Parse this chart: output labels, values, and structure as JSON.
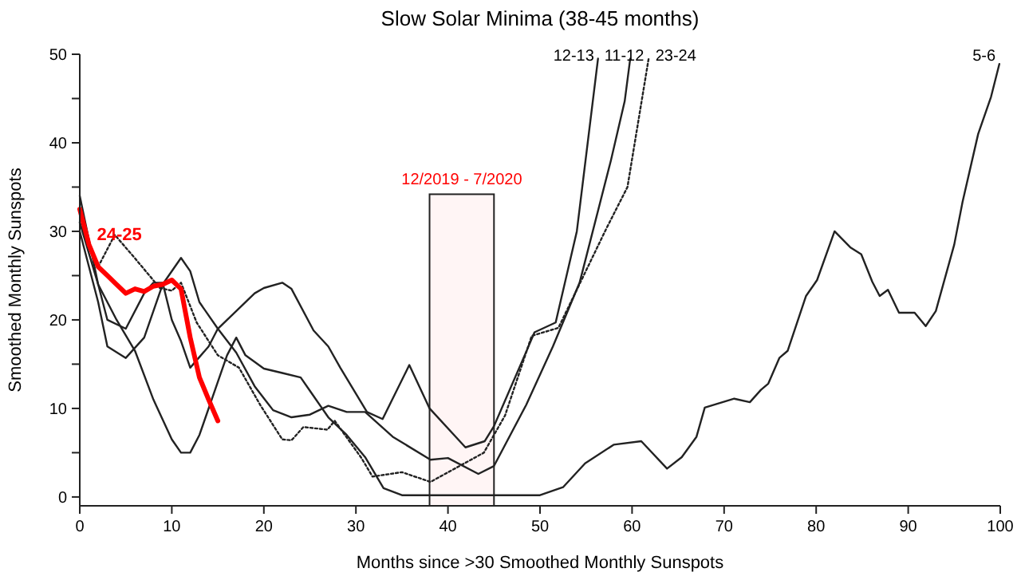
{
  "chart_data": {
    "type": "line",
    "title": "Slow Solar Minima (38-45 months)",
    "xlabel": "Months since >30 Smoothed Monthly Sunspots",
    "ylabel": "Smoothed Monthly Sunspots",
    "xlim": [
      0,
      100
    ],
    "ylim": [
      -1,
      50
    ],
    "xticks": [
      0,
      10,
      20,
      30,
      40,
      50,
      60,
      70,
      80,
      90,
      100
    ],
    "yticks": [
      0,
      {
        "value": 5,
        "label": null
      },
      10,
      {
        "value": 15,
        "label": null
      },
      20,
      {
        "value": 25,
        "label": null
      },
      30,
      {
        "value": 35,
        "label": null
      },
      40,
      {
        "value": 45,
        "label": null
      },
      50
    ],
    "bands": [
      {
        "axis": "x",
        "from": 38,
        "to": 45,
        "label": "12/2019 - 7/2020",
        "color": "#ff0000"
      }
    ],
    "series": [
      {
        "name": "12-13",
        "color": "#222222",
        "line_style": "solid",
        "x": [
          0,
          2,
          3,
          5,
          7,
          8,
          9,
          10,
          11,
          12,
          14,
          15,
          17,
          19,
          20,
          22,
          23,
          25.4,
          27,
          28.3,
          31.2,
          32.9,
          35.8,
          38,
          41.9,
          44,
          45,
          48.5,
          49.4,
          51.7,
          54,
          56.3
        ],
        "values": [
          34,
          24,
          20,
          19,
          23,
          24.2,
          24.2,
          20,
          17.6,
          14.6,
          17,
          19,
          21,
          23,
          23.6,
          24.2,
          23.5,
          18.8,
          17,
          14.6,
          9.6,
          8.8,
          14.9,
          10,
          5.6,
          6.3,
          8,
          16.4,
          18.6,
          19.7,
          30,
          49.5
        ]
      },
      {
        "name": "11-12",
        "color": "#222222",
        "line_style": "solid",
        "x": [
          0,
          2,
          3,
          5,
          7,
          9,
          11,
          12,
          13,
          15,
          17,
          19,
          21,
          23,
          25,
          27,
          29,
          31,
          34,
          38.1,
          40,
          43.3,
          45,
          48.5,
          51.4,
          54.3,
          57.7,
          59.2,
          59.8
        ],
        "values": [
          30,
          22,
          17,
          15.7,
          18,
          24,
          27,
          25.5,
          22,
          19,
          16.3,
          12.5,
          9.8,
          9,
          9.3,
          10.3,
          9.6,
          9.6,
          6.8,
          4.2,
          4.4,
          2.6,
          3.5,
          10.4,
          17,
          24.2,
          38,
          44.7,
          49.5
        ]
      },
      {
        "name": "23-24",
        "color": "#222222",
        "line_style": "dotted",
        "x": [
          0,
          2,
          3.8,
          5.8,
          8.7,
          10,
          11,
          12.7,
          15,
          17.3,
          19.6,
          22,
          23,
          24.3,
          26.9,
          27.7,
          30.6,
          31.8,
          35,
          38.1,
          43.9,
          46.2,
          49.1,
          52,
          57.2,
          59.5,
          61.8
        ],
        "values": [
          31,
          26,
          29.6,
          27.2,
          23.6,
          23.3,
          24.2,
          19.7,
          16,
          14.6,
          10.4,
          6.5,
          6.4,
          7.9,
          7.6,
          8.6,
          4.4,
          2.3,
          2.8,
          1.7,
          5,
          9.2,
          18.2,
          19.1,
          30.3,
          35,
          49.5
        ]
      },
      {
        "name": "5-6",
        "color": "#222222",
        "line_style": "solid",
        "x": [
          0,
          2,
          4,
          6,
          8,
          10,
          11,
          12,
          13,
          15,
          16,
          17,
          18,
          20,
          22,
          24,
          25,
          27,
          29,
          31,
          33,
          35,
          50,
          52.5,
          54.9,
          58,
          61,
          63.8,
          65.4,
          67,
          67.9,
          71.1,
          72.8,
          74,
          74.8,
          76,
          76.9,
          78.9,
          80.1,
          82,
          83.7,
          84.9,
          86.1,
          86.9,
          87.8,
          89,
          90.7,
          91.9,
          93,
          95,
          95.9,
          97.6,
          99,
          99.9
        ],
        "values": [
          31,
          24,
          20,
          16.5,
          11,
          6.5,
          5,
          5,
          7,
          13,
          16,
          18,
          16,
          14.5,
          14,
          13.5,
          12,
          9,
          7,
          4.5,
          1,
          0.2,
          0.2,
          1.1,
          3.8,
          5.9,
          6.3,
          3.2,
          4.5,
          6.8,
          10.1,
          11.1,
          10.7,
          12.1,
          12.8,
          15.7,
          16.5,
          22.7,
          24.5,
          30,
          28.2,
          27.4,
          24.3,
          22.7,
          23.4,
          20.8,
          20.8,
          19.3,
          21,
          28.5,
          33.3,
          41,
          45.2,
          48.9
        ]
      },
      {
        "name": "24-25",
        "color": "#ff0000",
        "line_style": "solid",
        "x": [
          0,
          1,
          2,
          3,
          4,
          5,
          6,
          7,
          8,
          9,
          10,
          11,
          12,
          13,
          14,
          15
        ],
        "values": [
          32.5,
          28.5,
          26,
          25,
          24,
          23,
          23.5,
          23.2,
          23.8,
          24,
          24.5,
          23.5,
          18,
          13.5,
          11,
          8.6
        ]
      }
    ]
  }
}
